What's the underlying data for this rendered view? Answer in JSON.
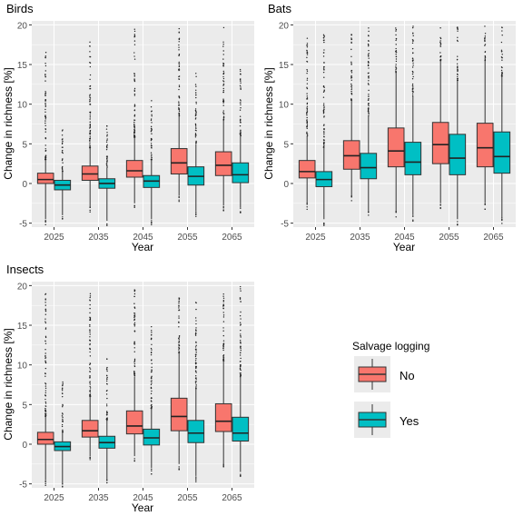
{
  "chart_data": [
    {
      "type": "boxplot",
      "title": "Birds",
      "xlabel": "Year",
      "ylabel": "Change in richness [%]",
      "ylim": [
        -5.5,
        20.5
      ],
      "yticks": [
        -5,
        0,
        5,
        10,
        15,
        20
      ],
      "ytick_labels": [
        "-5",
        "0",
        "5",
        "10",
        "15",
        "20"
      ],
      "categories": [
        "2025",
        "2035",
        "2045",
        "2055",
        "2065"
      ],
      "series": [
        {
          "name": "No",
          "boxes": [
            {
              "min": -4.5,
              "q1": 0.0,
              "median": 0.5,
              "q3": 1.3,
              "max": 3.0,
              "out_max": 17.0
            },
            {
              "min": -3.0,
              "q1": 0.4,
              "median": 1.2,
              "q3": 2.2,
              "max": 4.5,
              "out_max": 19.0
            },
            {
              "min": -2.5,
              "q1": 0.8,
              "median": 1.6,
              "q3": 2.9,
              "max": 5.8,
              "out_max": 19.5
            },
            {
              "min": -1.5,
              "q1": 1.2,
              "median": 2.6,
              "q3": 4.4,
              "max": 8.5,
              "out_max": 19.8
            },
            {
              "min": -2.8,
              "q1": 1.0,
              "median": 2.3,
              "q3": 4.0,
              "max": 8.0,
              "out_max": 19.8
            }
          ]
        },
        {
          "name": "Yes",
          "boxes": [
            {
              "min": -4.0,
              "q1": -0.8,
              "median": -0.2,
              "q3": 0.4,
              "max": 1.5,
              "out_max": 7.0
            },
            {
              "min": -4.5,
              "q1": -0.6,
              "median": 0.0,
              "q3": 0.6,
              "max": 2.0,
              "out_max": 8.0
            },
            {
              "min": -4.5,
              "q1": -0.5,
              "median": 0.3,
              "q3": 1.0,
              "max": 3.0,
              "out_max": 11.0
            },
            {
              "min": -3.5,
              "q1": -0.2,
              "median": 0.9,
              "q3": 2.1,
              "max": 5.0,
              "out_max": 14.0
            },
            {
              "min": -3.0,
              "q1": 0.1,
              "median": 1.1,
              "q3": 2.6,
              "max": 6.0,
              "out_max": 15.0
            }
          ]
        }
      ]
    },
    {
      "type": "boxplot",
      "title": "Bats",
      "xlabel": "Year",
      "ylabel": "Change in richness [%]",
      "ylim": [
        -5.5,
        20.5
      ],
      "yticks": [
        -5,
        0,
        5,
        10,
        15,
        20
      ],
      "ytick_labels": [
        "-5",
        "0",
        "5",
        "10",
        "15",
        "20"
      ],
      "categories": [
        "2025",
        "2035",
        "2045",
        "2055",
        "2065"
      ],
      "series": [
        {
          "name": "No",
          "boxes": [
            {
              "min": -2.5,
              "q1": 0.7,
              "median": 1.5,
              "q3": 2.9,
              "max": 6.0,
              "out_max": 19.0
            },
            {
              "min": -1.5,
              "q1": 1.8,
              "median": 3.5,
              "q3": 5.4,
              "max": 10.5,
              "out_max": 19.0
            },
            {
              "min": -3.5,
              "q1": 2.1,
              "median": 4.1,
              "q3": 7.0,
              "max": 14.0,
              "out_max": 20.0
            },
            {
              "min": -2.5,
              "q1": 2.5,
              "median": 4.9,
              "q3": 7.7,
              "max": 15.5,
              "out_max": 20.0
            },
            {
              "min": -2.5,
              "q1": 2.1,
              "median": 4.5,
              "q3": 7.6,
              "max": 15.5,
              "out_max": 20.0
            }
          ]
        },
        {
          "name": "Yes",
          "boxes": [
            {
              "min": -4.5,
              "q1": -0.4,
              "median": 0.5,
              "q3": 1.5,
              "max": 4.5,
              "out_max": 19.0
            },
            {
              "min": -3.5,
              "q1": 0.6,
              "median": 2.0,
              "q3": 3.8,
              "max": 8.5,
              "out_max": 20.0
            },
            {
              "min": -4.0,
              "q1": 1.1,
              "median": 2.7,
              "q3": 5.2,
              "max": 11.0,
              "out_max": 20.0
            },
            {
              "min": -4.5,
              "q1": 1.1,
              "median": 3.2,
              "q3": 6.2,
              "max": 13.0,
              "out_max": 20.0
            },
            {
              "min": -4.3,
              "q1": 1.3,
              "median": 3.4,
              "q3": 6.5,
              "max": 13.5,
              "out_max": 20.0
            }
          ]
        }
      ]
    },
    {
      "type": "boxplot",
      "title": "Insects",
      "xlabel": "Year",
      "ylabel": "Change in richness [%]",
      "ylim": [
        -5.5,
        20.5
      ],
      "yticks": [
        -5,
        0,
        5,
        10,
        15,
        20
      ],
      "ytick_labels": [
        "-5",
        "0",
        "5",
        "10",
        "15",
        "20"
      ],
      "categories": [
        "2025",
        "2035",
        "2045",
        "2055",
        "2065"
      ],
      "series": [
        {
          "name": "No",
          "boxes": [
            {
              "min": -4.5,
              "q1": 0.0,
              "median": 0.6,
              "q3": 1.5,
              "max": 3.5,
              "out_max": 19.0
            },
            {
              "min": -1.5,
              "q1": 0.9,
              "median": 1.7,
              "q3": 3.0,
              "max": 6.0,
              "out_max": 19.5
            },
            {
              "min": -1.5,
              "q1": 1.3,
              "median": 2.3,
              "q3": 4.2,
              "max": 8.5,
              "out_max": 19.8
            },
            {
              "min": -2.5,
              "q1": 1.7,
              "median": 3.5,
              "q3": 5.8,
              "max": 11.5,
              "out_max": 20.0
            },
            {
              "min": -2.5,
              "q1": 1.6,
              "median": 2.9,
              "q3": 5.1,
              "max": 10.5,
              "out_max": 20.0
            }
          ]
        },
        {
          "name": "Yes",
          "boxes": [
            {
              "min": -5.0,
              "q1": -0.8,
              "median": -0.3,
              "q3": 0.3,
              "max": 1.5,
              "out_max": 8.0
            },
            {
              "min": -4.5,
              "q1": -0.5,
              "median": 0.2,
              "q3": 1.0,
              "max": 3.0,
              "out_max": 11.0
            },
            {
              "min": -3.0,
              "q1": -0.1,
              "median": 0.8,
              "q3": 1.9,
              "max": 4.5,
              "out_max": 16.0
            },
            {
              "min": -4.0,
              "q1": 0.2,
              "median": 1.4,
              "q3": 3.0,
              "max": 7.0,
              "out_max": 19.0
            },
            {
              "min": -3.5,
              "q1": 0.4,
              "median": 1.4,
              "q3": 3.4,
              "max": 8.5,
              "out_max": 20.0
            }
          ]
        }
      ]
    }
  ],
  "legend": {
    "title": "Salvage logging",
    "items": [
      {
        "label": "No",
        "color": "#F8766D"
      },
      {
        "label": "Yes",
        "color": "#00BFC4"
      }
    ]
  },
  "colors": {
    "panel_bg": "#EBEBEB",
    "grid": "#FFFFFF",
    "no": "#F8766D",
    "yes": "#00BFC4"
  }
}
